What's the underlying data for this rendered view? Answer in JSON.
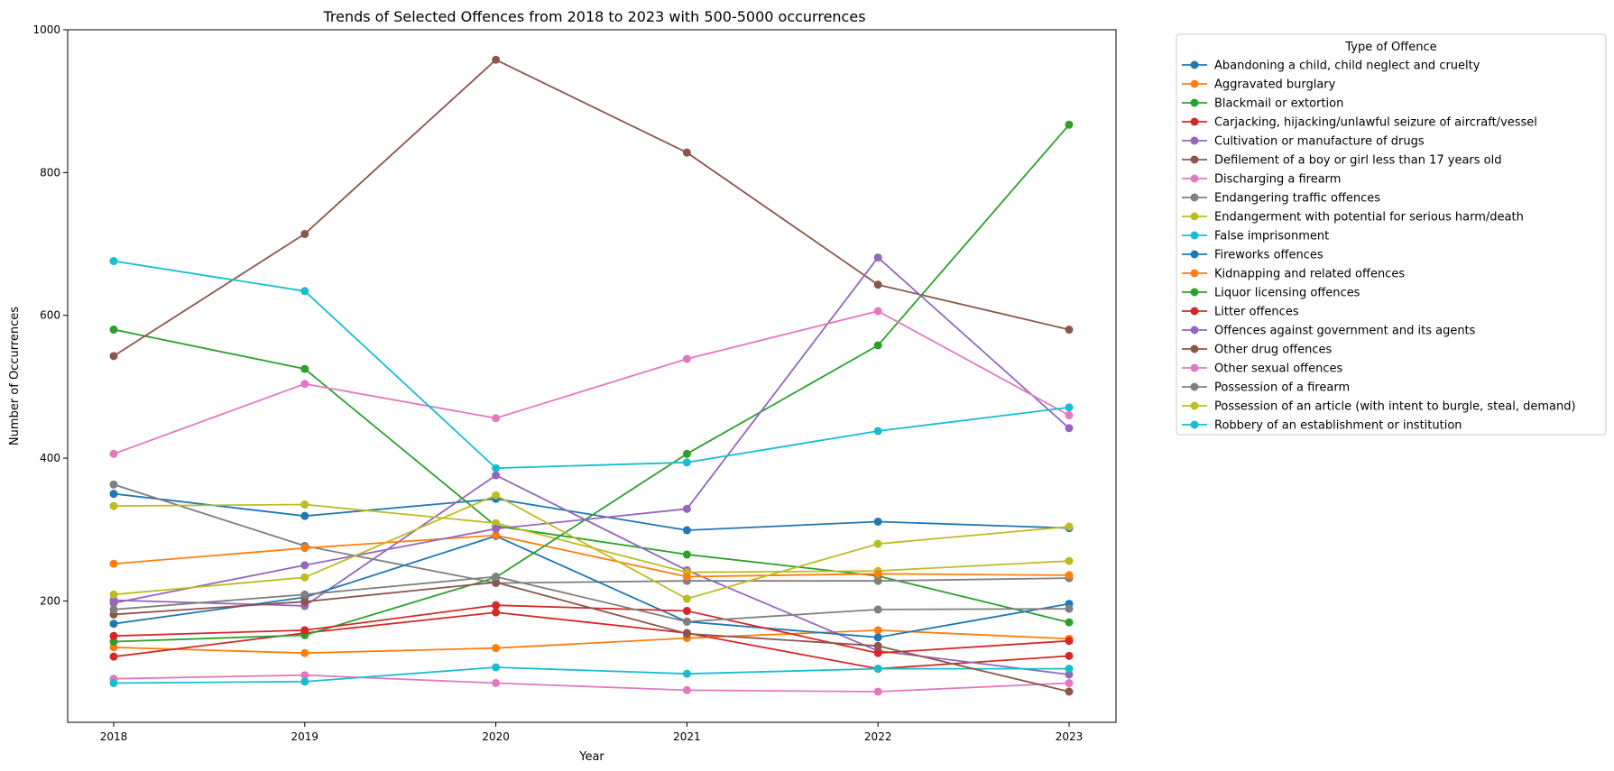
{
  "chart_data": {
    "type": "line",
    "title": "Trends of Selected Offences from 2018 to 2023 with 500-5000 occurrences",
    "xlabel": "Year",
    "ylabel": "Number of Occurrences",
    "x": [
      2018,
      2019,
      2020,
      2021,
      2022,
      2023
    ],
    "x_tick_labels": [
      "2018",
      "2019",
      "2020",
      "2021",
      "2022",
      "2023"
    ],
    "ylim": [
      30,
      1000
    ],
    "y_ticks": [
      200,
      400,
      600,
      800,
      1000
    ],
    "y_tick_labels": [
      "200",
      "400",
      "600",
      "800",
      "1000"
    ],
    "grid": false,
    "legend_title": "Type of Offence",
    "legend_position": "outside-right-top",
    "series": [
      {
        "name": "Abandoning a child, child neglect and cruelty",
        "color": "#1f77b4",
        "values": [
          350,
          319,
          343,
          299,
          311,
          302
        ]
      },
      {
        "name": "Aggravated burglary",
        "color": "#ff7f0e",
        "values": [
          135,
          127,
          134,
          148,
          159,
          147
        ]
      },
      {
        "name": "Blackmail or extortion",
        "color": "#2ca02c",
        "values": [
          580,
          525,
          305,
          265,
          235,
          170
        ]
      },
      {
        "name": "Carjacking, hijacking/unlawful seizure of aircraft/vessel",
        "color": "#d62728",
        "values": [
          122,
          155,
          184,
          155,
          105,
          123
        ]
      },
      {
        "name": "Cultivation or manufacture of drugs",
        "color": "#9467bd",
        "values": [
          201,
          193,
          376,
          243,
          130,
          97
        ]
      },
      {
        "name": "Defilement of a boy or girl less than 17 years old",
        "color": "#8c564b",
        "values": [
          543,
          714,
          958,
          828,
          643,
          580
        ]
      },
      {
        "name": "Discharging a firearm",
        "color": "#e377c2",
        "values": [
          91,
          96,
          85,
          75,
          73,
          85
        ]
      },
      {
        "name": "Endangering traffic offences",
        "color": "#7f7f7f",
        "values": [
          363,
          277,
          225,
          228,
          228,
          232
        ]
      },
      {
        "name": "Endangerment with potential for serious harm/death",
        "color": "#bcbd22",
        "values": [
          333,
          335,
          309,
          240,
          242,
          256
        ]
      },
      {
        "name": "False imprisonment",
        "color": "#17becf",
        "values": [
          85,
          87,
          107,
          98,
          105,
          105
        ]
      },
      {
        "name": "Fireworks offences",
        "color": "#1f77b4",
        "values": [
          168,
          205,
          291,
          171,
          149,
          196
        ]
      },
      {
        "name": "Kidnapping and related offences",
        "color": "#ff7f0e",
        "values": [
          252,
          274,
          292,
          234,
          238,
          236
        ]
      },
      {
        "name": "Liquor licensing offences",
        "color": "#2ca02c",
        "values": [
          143,
          152,
          233,
          406,
          558,
          867
        ]
      },
      {
        "name": "Litter offences",
        "color": "#d62728",
        "values": [
          151,
          159,
          194,
          186,
          127,
          144
        ]
      },
      {
        "name": "Offences against government and its agents",
        "color": "#9467bd",
        "values": [
          197,
          250,
          301,
          329,
          681,
          442
        ]
      },
      {
        "name": "Other drug offences",
        "color": "#8c564b",
        "values": [
          181,
          199,
          226,
          154,
          137,
          73
        ]
      },
      {
        "name": "Other sexual offences",
        "color": "#e377c2",
        "values": [
          406,
          504,
          456,
          539,
          606,
          460
        ]
      },
      {
        "name": "Possession of a firearm",
        "color": "#7f7f7f",
        "values": [
          188,
          209,
          234,
          171,
          188,
          189
        ]
      },
      {
        "name": "Possession of an article (with intent to burgle, steal, demand)",
        "color": "#bcbd22",
        "values": [
          209,
          233,
          348,
          203,
          280,
          304
        ]
      },
      {
        "name": "Robbery of an establishment or institution",
        "color": "#17becf",
        "values": [
          676,
          634,
          386,
          394,
          438,
          471
        ]
      }
    ]
  }
}
